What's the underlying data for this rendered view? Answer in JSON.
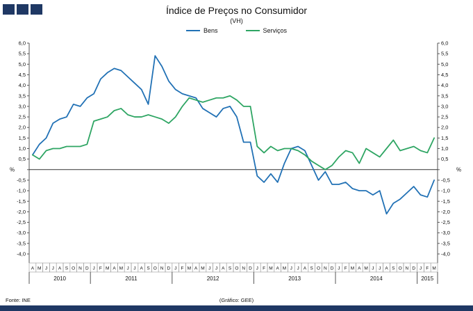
{
  "colors": {
    "navy": "#1f3864",
    "bens": "#2171b5",
    "servicos": "#2ea563",
    "axis": "#555555"
  },
  "header": {
    "title": "Índice de Preços no Consumidor",
    "subtitle": "(VH)"
  },
  "legend": {
    "items": [
      {
        "label": "Bens",
        "color": "#2171b5"
      },
      {
        "label": "Serviços",
        "color": "#2ea563"
      }
    ]
  },
  "footer": {
    "source": "Fonte: INE",
    "credit": "(Gráfico: GEE)"
  },
  "chart_data": {
    "type": "line",
    "title": "Índice de Preços no Consumidor",
    "subtitle": "(VH)",
    "unit": "%",
    "ylim": [
      -4.0,
      6.0
    ],
    "ytick_step": 0.5,
    "grid": false,
    "legend_position": "top-center",
    "x_months": [
      "A",
      "M",
      "J",
      "J",
      "A",
      "S",
      "O",
      "N",
      "D",
      "J",
      "F",
      "M",
      "A",
      "M",
      "J",
      "J",
      "A",
      "S",
      "O",
      "N",
      "D",
      "J",
      "F",
      "M",
      "A",
      "M",
      "J",
      "J",
      "A",
      "S",
      "O",
      "N",
      "D",
      "J",
      "F",
      "M",
      "A",
      "M",
      "J",
      "J",
      "A",
      "S",
      "O",
      "N",
      "D",
      "J",
      "F",
      "M",
      "A",
      "M",
      "J",
      "J",
      "A",
      "S",
      "O",
      "N",
      "D",
      "J",
      "F",
      "M"
    ],
    "years": [
      {
        "label": "2010",
        "count": 9
      },
      {
        "label": "2011",
        "count": 12
      },
      {
        "label": "2012",
        "count": 12
      },
      {
        "label": "2013",
        "count": 12
      },
      {
        "label": "2014",
        "count": 12
      },
      {
        "label": "2015",
        "count": 3
      }
    ],
    "series": [
      {
        "name": "Bens",
        "color": "#2171b5",
        "values": [
          0.7,
          1.2,
          1.5,
          2.2,
          2.4,
          2.5,
          3.1,
          3.0,
          3.4,
          3.6,
          4.3,
          4.6,
          4.8,
          4.7,
          4.4,
          4.1,
          3.8,
          3.1,
          5.4,
          4.9,
          4.2,
          3.8,
          3.6,
          3.5,
          3.4,
          2.9,
          2.7,
          2.5,
          2.9,
          3.0,
          2.5,
          1.3,
          1.3,
          -0.3,
          -0.6,
          -0.2,
          -0.6,
          0.3,
          1.0,
          1.1,
          0.9,
          0.2,
          -0.5,
          -0.1,
          -0.7,
          -0.7,
          -0.6,
          -0.9,
          -1.0,
          -1.0,
          -1.2,
          -1.0,
          -2.1,
          -1.6,
          -1.4,
          -1.1,
          -0.8,
          -1.2,
          -1.3,
          -0.5
        ]
      },
      {
        "name": "Serviços",
        "color": "#2ea563",
        "values": [
          0.7,
          0.5,
          0.9,
          1.0,
          1.0,
          1.1,
          1.1,
          1.1,
          1.2,
          2.3,
          2.4,
          2.5,
          2.8,
          2.9,
          2.6,
          2.5,
          2.5,
          2.6,
          2.5,
          2.4,
          2.2,
          2.5,
          3.0,
          3.4,
          3.3,
          3.2,
          3.3,
          3.4,
          3.4,
          3.5,
          3.3,
          3.0,
          3.0,
          1.1,
          0.8,
          1.1,
          0.9,
          1.0,
          1.0,
          0.9,
          0.7,
          0.4,
          0.2,
          0.0,
          0.2,
          0.6,
          0.9,
          0.8,
          0.3,
          1.0,
          0.8,
          0.6,
          1.0,
          1.4,
          0.9,
          1.0,
          1.1,
          0.9,
          0.8,
          1.5
        ]
      }
    ]
  }
}
